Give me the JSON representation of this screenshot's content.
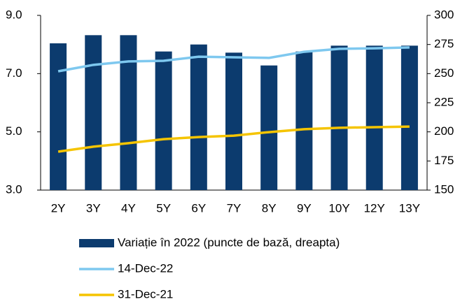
{
  "chart_data": {
    "type": "bar_line",
    "categories": [
      "2Y",
      "3Y",
      "4Y",
      "5Y",
      "6Y",
      "7Y",
      "8Y",
      "9Y",
      "10Y",
      "12Y",
      "13Y"
    ],
    "series": [
      {
        "name": "Variație în 2022 (puncte de bază, dreapta)",
        "type": "bar",
        "axis": "y2",
        "color": "#0c3b6e",
        "values": [
          276,
          283,
          283,
          269,
          275,
          268,
          257,
          269,
          274,
          274,
          274
        ]
      },
      {
        "name": "14-Dec-22",
        "type": "line",
        "color": "#7ec8ef",
        "values": [
          7.08,
          7.3,
          7.42,
          7.44,
          7.58,
          7.56,
          7.54,
          7.75,
          7.85,
          7.87,
          7.9
        ]
      },
      {
        "name": "31-Dec-21",
        "type": "line",
        "color": "#f5c400",
        "values": [
          4.32,
          4.49,
          4.61,
          4.75,
          4.82,
          4.87,
          4.99,
          5.09,
          5.14,
          5.16,
          5.18
        ]
      }
    ],
    "ylim": [
      3,
      9
    ],
    "yticks": [
      {
        "value": 3,
        "label": "3.0"
      },
      {
        "value": 5,
        "label": "5.0"
      },
      {
        "value": 7,
        "label": "7.0"
      },
      {
        "value": 9,
        "label": "9.0"
      }
    ],
    "y2lim": [
      150,
      300
    ],
    "y2ticks": [
      150,
      175,
      200,
      225,
      250,
      275,
      300
    ],
    "legend": "bottom"
  }
}
